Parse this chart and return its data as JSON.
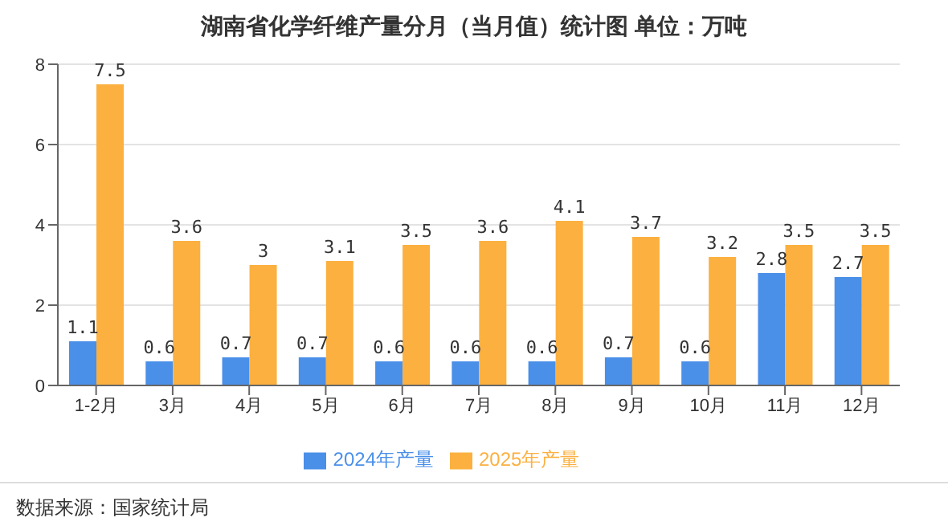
{
  "chart_data": {
    "type": "bar",
    "title": "湖南省化学纤维产量分月（当月值）统计图 单位：万吨",
    "categories": [
      "1-2月",
      "3月",
      "4月",
      "5月",
      "6月",
      "7月",
      "8月",
      "9月",
      "10月",
      "11月",
      "12月"
    ],
    "series": [
      {
        "name": "2024年产量",
        "color": "#4a8fe8",
        "values": [
          1.1,
          0.6,
          0.7,
          0.7,
          0.6,
          0.6,
          0.6,
          0.7,
          0.6,
          2.8,
          2.7
        ]
      },
      {
        "name": "2025年产量",
        "color": "#fbb040",
        "values": [
          7.5,
          3.6,
          3,
          3.1,
          3.5,
          3.6,
          4.1,
          3.7,
          3.2,
          3.5,
          3.5
        ]
      }
    ],
    "ylim": [
      0,
      8
    ],
    "yticks": [
      0,
      2,
      4,
      6,
      8
    ],
    "grid": "y",
    "legend": "bottom",
    "data_labels": true,
    "annotations": [
      "数据来源：国家统计局"
    ]
  }
}
